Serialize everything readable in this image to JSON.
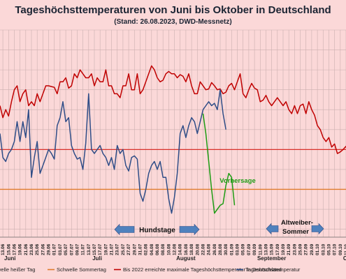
{
  "chart_data": {
    "type": "line",
    "title": "Tageshöchsttemperaturen von Juni bis Oktober in Deutschland",
    "subtitle": "(Stand: 26.08.2023, DWD-Messnetz)",
    "x_labels": [
      "13.06",
      "15.06",
      "17.06",
      "19.06",
      "21.06",
      "23.06",
      "25.06",
      "27.06",
      "29.06",
      "01.07",
      "03.07",
      "05.07",
      "07.07",
      "09.07",
      "11.07",
      "13.07",
      "15.07",
      "17.07",
      "19.07",
      "21.07",
      "23.07",
      "25.07",
      "27.07",
      "29.07",
      "31.07",
      "02.08",
      "04.08",
      "06.08",
      "08.08",
      "10.08",
      "12.08",
      "14.08",
      "16.08",
      "18.08",
      "20.08",
      "22.08",
      "24.08",
      "26.08",
      "28.08",
      "30.08",
      "01.09",
      "03.09",
      "05.09",
      "07.09",
      "09.09",
      "11.09",
      "13.09",
      "15.09",
      "17.09",
      "19.09",
      "21.09",
      "23.09",
      "25.09",
      "27.09",
      "29.09",
      "01.10",
      "03.10",
      "05.10",
      "07.10",
      "09.10",
      "11.10"
    ],
    "months": [
      "Juni",
      "Juli",
      "August",
      "September",
      "O"
    ],
    "series": [
      {
        "name": "Bis 2022 erreichte maximale Tageshöchsttemperatur in Deutschland",
        "color": "#c00000",
        "x_start": "12.06",
        "values": [
          35.5,
          34.0,
          35.0,
          34.2,
          36.0,
          37.5,
          38.0,
          36.0,
          37.0,
          37.5,
          35.5,
          36.0,
          35.5,
          37.0,
          36.0,
          37.0,
          38.0,
          38.0,
          37.9,
          37.8,
          37.0,
          38.5,
          38.5,
          39.0,
          37.7,
          38.0,
          39.5,
          39.0,
          40.0,
          39.5,
          39.0,
          39.0,
          39.5,
          38.0,
          39.0,
          38.5,
          38.5,
          40.0,
          38.0,
          38.0,
          37.0,
          37.0,
          36.5,
          38.0,
          38.0,
          39.5,
          37.5,
          37.5,
          39.5,
          37.0,
          37.5,
          38.5,
          39.5,
          40.5,
          40.0,
          39.0,
          38.5,
          38.7,
          39.5,
          39.8,
          39.5,
          39.5,
          39.0,
          39.4,
          39.2,
          38.5,
          39.5,
          38.0,
          37.0,
          37.0,
          38.5,
          38.0,
          37.5,
          37.6,
          38.4,
          38.0,
          37.5,
          37.6,
          37.0,
          37.2,
          38.0,
          38.3,
          37.5,
          38.5,
          39.5,
          37.0,
          36.5,
          37.5,
          38.3,
          37.7,
          37.5,
          36.0,
          36.2,
          36.8,
          36.0,
          35.5,
          36.0,
          36.5,
          36.0,
          35.5,
          36.0,
          35.0,
          34.5,
          35.5,
          34.5,
          35.5,
          35.7,
          34.5,
          36.0,
          35.0,
          34.3,
          33.0,
          32.5,
          31.5,
          31.0,
          31.5,
          30.3,
          30.7,
          29.5,
          29.7,
          30.0,
          30.4,
          29.5,
          29.2,
          29.6,
          30.5,
          30.3,
          29.0,
          29.4,
          28.9,
          28.6,
          29.1,
          28.8
        ]
      },
      {
        "name": "Tageshöchsttemperatur",
        "color": "#2f4d87",
        "x_start": "12.06",
        "values": [
          32.0,
          29.0,
          28.5,
          29.5,
          30.0,
          31.0,
          33.5,
          31.0,
          33.5,
          31.5,
          35.0,
          26.5,
          29.0,
          31.0,
          27.0,
          28.0,
          29.0,
          30.0,
          29.5,
          28.8,
          33.0,
          34.0,
          36.0,
          33.5,
          34.0,
          30.5,
          29.5,
          28.8,
          29.0,
          27.5,
          30.8,
          37.0,
          30.0,
          29.5,
          30.0,
          30.5,
          29.5,
          29.0,
          28.0,
          29.0,
          27.5,
          30.5,
          29.5,
          30.0,
          28.0,
          27.3,
          29.0,
          29.2,
          28.8,
          24.5,
          23.5,
          25.0,
          27.0,
          28.0,
          28.5,
          27.5,
          28.5,
          26.5,
          26.5,
          23.8,
          22.0,
          24.0,
          27.0,
          32.0,
          33.0,
          31.5,
          33.0,
          34.0,
          33.5,
          32.0,
          33.5,
          35.0,
          35.5,
          36.0,
          35.5,
          35.8,
          35.0,
          37.5,
          34.5,
          32.5
        ],
        "forecast": {
          "label": "Vorhersage",
          "color": "#1e9c14",
          "start": "22.08",
          "values": [
            34.5,
            32.0,
            28.5,
            25.0,
            22.0,
            22.5,
            23.0,
            23.2,
            25.5,
            27.0,
            26.5,
            23.0
          ]
        }
      }
    ],
    "reference_lines": [
      {
        "name": "Schwelle heißer Tag",
        "value": 30,
        "color": "#d8302a"
      },
      {
        "name": "Schwelle Sommertag",
        "value": 25,
        "color": "#e07b2c"
      }
    ],
    "annotations": {
      "dogdays": "Hundstage",
      "indian_summer_1": "Altweiber-",
      "indian_summer_2": "Sommer",
      "forecast_label": "Vorhersage"
    },
    "legend": {
      "position": "bottom",
      "items": [
        {
          "name": "Schwelle heißer Tag",
          "color": "#d8302a"
        },
        {
          "name": "Schwelle Sommertag",
          "color": "#e07b2c"
        },
        {
          "name": "Bis 2022 erreichte maximale Tageshöchsttemperatur in Deutschland",
          "color": "#c00000"
        },
        {
          "name": "Tageshöchsttemperatur",
          "color": "#2f4d87"
        }
      ]
    },
    "grid": true
  }
}
